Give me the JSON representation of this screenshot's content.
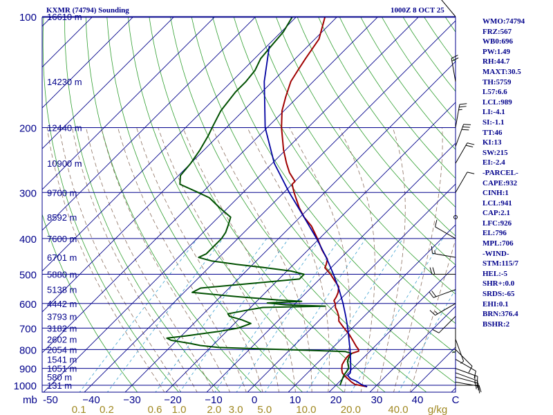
{
  "header": {
    "station": "KXMR (74794) Sounding",
    "valid_time": "1000Z  8 OCT 25"
  },
  "indices": [
    "WMO:74794",
    "FRZ:567",
    "WB0:696",
    "PW:1.49",
    "RH:44.7",
    "MAXT:30.5",
    "TH:5759",
    "L57:6.6",
    "LCL:989",
    "LI:-4.1",
    "SI:-1.1",
    "TT:46",
    "KI:13",
    "SW:215",
    "EI:-2.4",
    "-PARCEL-",
    "CAPE:932",
    "CINH:1",
    "LCL:941",
    "CAP:2.1",
    "LFC:926",
    "EL:796",
    "MPL:706",
    "-WIND-",
    "STM:115/7",
    "HEL:-5",
    "SHR+:0.0",
    "SRDS:-65",
    "EHI:0.1",
    "BRN:376.4",
    "BSHR:2"
  ],
  "colors": {
    "frame": "#00008b",
    "isobar": "#00008b",
    "isotherm": "#00008b",
    "dry_adiabat": "#2e9e2e",
    "moist_adiabat": "#8c7060",
    "mixing_ratio": "#3aa0d0",
    "temperature": "#a00000",
    "dewpoint": "#005000",
    "parcel": "#0000a0",
    "wind_barbs": "#000000",
    "mixing_labels": "#a08820"
  },
  "chart_data": {
    "type": "line",
    "title": "KXMR (74794) Sounding",
    "subtitle": "1000Z  8 OCT 25",
    "pressure_axis": {
      "scale": "log",
      "ylim": [
        1050,
        100
      ],
      "ticks": [
        100,
        200,
        300,
        400,
        500,
        600,
        700,
        800,
        900,
        1000
      ],
      "unit_label": "mb"
    },
    "temperature_axis": {
      "ticks": [
        -50,
        -40,
        -30,
        -20,
        -10,
        0,
        10,
        20,
        30,
        40
      ],
      "tick_labels": [
        "-50",
        "−40",
        "−30",
        "−20",
        "−10",
        "0",
        "10",
        "20",
        "30",
        "40"
      ],
      "extra_label": "C",
      "skew": true
    },
    "mixing_ratio_axis": {
      "values": [
        0.1,
        0.2,
        0.6,
        1.0,
        2.0,
        3.0,
        5.0,
        10.0,
        20.0,
        40.0
      ],
      "labels": [
        "0.1",
        "0.2",
        "0.6",
        "1.0",
        "2.0",
        "3.0",
        "5.0",
        "10.0",
        "20.0",
        "40.0"
      ],
      "unit_label": "g/kg"
    },
    "height_labels": [
      {
        "p": 100,
        "label": "16610 m"
      },
      {
        "p": 150,
        "label": "14230 m"
      },
      {
        "p": 200,
        "label": "12440 m"
      },
      {
        "p": 250,
        "label": "10900 m"
      },
      {
        "p": 300,
        "label": "9700 m"
      },
      {
        "p": 350,
        "label": "8592 m"
      },
      {
        "p": 400,
        "label": "7600 m"
      },
      {
        "p": 450,
        "label": "6701 m"
      },
      {
        "p": 500,
        "label": "5880 m"
      },
      {
        "p": 550,
        "label": "5138 m"
      },
      {
        "p": 600,
        "label": "4442 m"
      },
      {
        "p": 650,
        "label": "3793 m"
      },
      {
        "p": 700,
        "label": "3182 m"
      },
      {
        "p": 750,
        "label": "2602 m"
      },
      {
        "p": 800,
        "label": "2054 m"
      },
      {
        "p": 850,
        "label": "1541 m"
      },
      {
        "p": 900,
        "label": "1051 m"
      },
      {
        "p": 950,
        "label": "580 m"
      },
      {
        "p": 1000,
        "label": "131 m"
      }
    ],
    "series": [
      {
        "name": "Temperature",
        "unit": "C",
        "points": [
          [
            1009,
            28.0
          ],
          [
            995,
            24.5
          ],
          [
            980,
            23.0
          ],
          [
            962,
            21.5
          ],
          [
            945,
            20.0
          ],
          [
            925,
            18.5
          ],
          [
            905,
            17.5
          ],
          [
            880,
            16.5
          ],
          [
            855,
            16.0
          ],
          [
            840,
            15.8
          ],
          [
            822,
            15.8
          ],
          [
            808,
            17.2
          ],
          [
            800,
            16.8
          ],
          [
            785,
            15.5
          ],
          [
            760,
            13.5
          ],
          [
            730,
            11.0
          ],
          [
            700,
            8.0
          ],
          [
            670,
            5.0
          ],
          [
            650,
            3.8
          ],
          [
            630,
            2.2
          ],
          [
            615,
            0.8
          ],
          [
            600,
            -0.2
          ],
          [
            590,
            -1.2
          ],
          [
            575,
            -1.6
          ],
          [
            560,
            -2.2
          ],
          [
            540,
            -3.5
          ],
          [
            520,
            -6.0
          ],
          [
            500,
            -8.5
          ],
          [
            480,
            -11.5
          ],
          [
            470,
            -12.0
          ],
          [
            455,
            -13.0
          ],
          [
            430,
            -16.5
          ],
          [
            400,
            -20.5
          ],
          [
            370,
            -25.0
          ],
          [
            350,
            -29.0
          ],
          [
            330,
            -32.5
          ],
          [
            300,
            -37.5
          ],
          [
            285,
            -40.0
          ],
          [
            280,
            -40.0
          ],
          [
            265,
            -43.5
          ],
          [
            250,
            -46.5
          ],
          [
            230,
            -50.5
          ],
          [
            200,
            -56.5
          ],
          [
            180,
            -60.5
          ],
          [
            165,
            -63.0
          ],
          [
            150,
            -65.5
          ],
          [
            140,
            -66.5
          ],
          [
            130,
            -67.5
          ],
          [
            115,
            -69.0
          ],
          [
            100,
            -73.0
          ]
        ]
      },
      {
        "name": "Dewpoint",
        "unit": "C",
        "points": [
          [
            1000,
            21.0
          ],
          [
            980,
            20.5
          ],
          [
            960,
            20.0
          ],
          [
            940,
            19.5
          ],
          [
            900,
            19.0
          ],
          [
            880,
            18.0
          ],
          [
            862,
            17.0
          ],
          [
            845,
            16.5
          ],
          [
            820,
            16.0
          ],
          [
            810,
            14.0
          ],
          [
            800,
            -2.0
          ],
          [
            790,
            -18.0
          ],
          [
            780,
            -23.0
          ],
          [
            770,
            -26.0
          ],
          [
            755,
            -31.5
          ],
          [
            745,
            -33.0
          ],
          [
            735,
            -29.0
          ],
          [
            715,
            -22.0
          ],
          [
            700,
            -18.0
          ],
          [
            680,
            -16.0
          ],
          [
            665,
            -19.0
          ],
          [
            650,
            -23.0
          ],
          [
            640,
            -24.0
          ],
          [
            625,
            -20.0
          ],
          [
            615,
            -17.0
          ],
          [
            610,
            -2.0
          ],
          [
            605,
            -12.0
          ],
          [
            598,
            -17.0
          ],
          [
            592,
            -9.0
          ],
          [
            587,
            -15.0
          ],
          [
            575,
            -26.0
          ],
          [
            560,
            -38.0
          ],
          [
            545,
            -37.0
          ],
          [
            530,
            -26.0
          ],
          [
            515,
            -15.0
          ],
          [
            500,
            -15.0
          ],
          [
            490,
            -19.0
          ],
          [
            480,
            -26.0
          ],
          [
            470,
            -34.0
          ],
          [
            460,
            -41.0
          ],
          [
            450,
            -45.0
          ],
          [
            440,
            -44.0
          ],
          [
            420,
            -44.0
          ],
          [
            400,
            -44.0
          ],
          [
            385,
            -44.5
          ],
          [
            370,
            -45.5
          ],
          [
            350,
            -47.0
          ],
          [
            330,
            -52.0
          ],
          [
            310,
            -57.0
          ],
          [
            300,
            -61.0
          ],
          [
            285,
            -67.5
          ],
          [
            270,
            -69.5
          ],
          [
            250,
            -70.0
          ],
          [
            230,
            -71.0
          ],
          [
            210,
            -72.5
          ],
          [
            200,
            -73.5
          ],
          [
            180,
            -75.5
          ],
          [
            160,
            -76.5
          ],
          [
            150,
            -76.5
          ],
          [
            140,
            -77.0
          ],
          [
            130,
            -78.5
          ],
          [
            120,
            -79.0
          ],
          [
            110,
            -79.5
          ],
          [
            100,
            -81.0
          ]
        ]
      },
      {
        "name": "Parcel",
        "unit": "C",
        "points": [
          [
            1009,
            28.0
          ],
          [
            995,
            26.0
          ],
          [
            975,
            24.0
          ],
          [
            960,
            22.0
          ],
          [
            941,
            20.5
          ],
          [
            926,
            20.5
          ],
          [
            900,
            19.5
          ],
          [
            850,
            17.2
          ],
          [
            800,
            14.7
          ],
          [
            750,
            11.9
          ],
          [
            700,
            8.9
          ],
          [
            650,
            5.5
          ],
          [
            600,
            1.7
          ],
          [
            550,
            -2.7
          ],
          [
            500,
            -7.8
          ],
          [
            450,
            -13.7
          ],
          [
            400,
            -20.7
          ],
          [
            350,
            -29.0
          ],
          [
            300,
            -38.7
          ],
          [
            250,
            -49.5
          ],
          [
            200,
            -60.5
          ],
          [
            170,
            -67.0
          ],
          [
            150,
            -72.0
          ],
          [
            120,
            -79.5
          ]
        ]
      }
    ],
    "wind_barbs": [
      {
        "p": 1000,
        "dir": 90,
        "spd": 10
      },
      {
        "p": 980,
        "dir": 100,
        "spd": 15
      },
      {
        "p": 950,
        "dir": 105,
        "spd": 15
      },
      {
        "p": 925,
        "dir": 110,
        "spd": 15
      },
      {
        "p": 900,
        "dir": 110,
        "spd": 15
      },
      {
        "p": 850,
        "dir": 120,
        "spd": 10
      },
      {
        "p": 800,
        "dir": 135,
        "spd": 10
      },
      {
        "p": 750,
        "dir": 160,
        "spd": 5
      },
      {
        "p": 700,
        "dir": 180,
        "spd": 5
      },
      {
        "p": 650,
        "dir": 225,
        "spd": 10
      },
      {
        "p": 600,
        "dir": 240,
        "spd": 15
      },
      {
        "p": 550,
        "dir": 250,
        "spd": 20
      },
      {
        "p": 500,
        "dir": 270,
        "spd": 20
      },
      {
        "p": 450,
        "dir": 280,
        "spd": 15
      },
      {
        "p": 400,
        "dir": 300,
        "spd": 10
      },
      {
        "p": 350,
        "dir": 0,
        "spd": 0
      },
      {
        "p": 300,
        "dir": 30,
        "spd": 10
      },
      {
        "p": 250,
        "dir": 30,
        "spd": 20
      },
      {
        "p": 225,
        "dir": 20,
        "spd": 30
      },
      {
        "p": 200,
        "dir": 10,
        "spd": 25
      },
      {
        "p": 150,
        "dir": 350,
        "spd": 20
      },
      {
        "p": 100,
        "dir": 320,
        "spd": 10
      }
    ]
  }
}
